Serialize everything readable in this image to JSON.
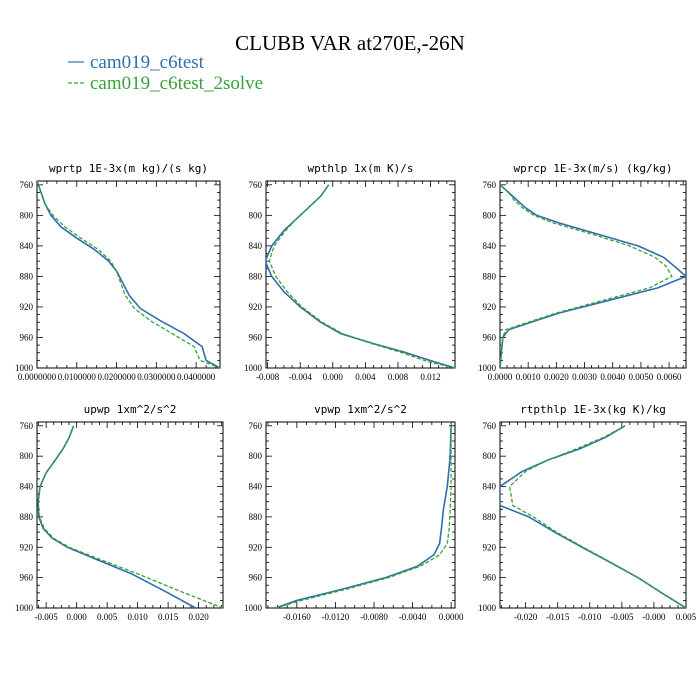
{
  "title": "CLUBB VAR at270E,-26N",
  "colors": {
    "series1": "#2f6fac",
    "series2": "#38a23a"
  },
  "legend": [
    {
      "label": "cam019_c6test",
      "color": "#2f6fac",
      "dash": "solid"
    },
    {
      "label": "cam019_c6test_2solve",
      "color": "#38a23a",
      "dash": "dashed"
    }
  ],
  "chart_data": [
    {
      "type": "line",
      "title": "wprtp   1E-3x(m kg)/(s kg)",
      "xlim": [
        0.0,
        0.046
      ],
      "ylim": [
        1000,
        755
      ],
      "y_inverted": true,
      "yticks": [
        760,
        800,
        840,
        880,
        920,
        960,
        1000
      ],
      "xticks": [
        0.0,
        0.01,
        0.02,
        0.03,
        0.04
      ],
      "xtick_labels": [
        "0.0000000",
        "0.0100000",
        "0.0200000",
        "0.0300000",
        "0.0400000"
      ],
      "series": [
        {
          "name": "cam019_c6test",
          "x": [
            0.0,
            0.001,
            0.002,
            0.0035,
            0.006,
            0.01,
            0.0145,
            0.018,
            0.02,
            0.0215,
            0.0232,
            0.026,
            0.031,
            0.037,
            0.0415,
            0.0425,
            0.046
          ],
          "y": [
            755,
            770,
            785,
            800,
            815,
            830,
            845,
            860,
            873,
            888,
            905,
            922,
            938,
            955,
            972,
            990,
            1000
          ]
        },
        {
          "name": "cam019_c6test_2solve",
          "x": [
            0.0,
            0.001,
            0.002,
            0.004,
            0.007,
            0.011,
            0.0155,
            0.0185,
            0.02,
            0.021,
            0.0222,
            0.0245,
            0.0285,
            0.034,
            0.0395,
            0.041,
            0.046
          ],
          "y": [
            755,
            770,
            785,
            800,
            815,
            830,
            845,
            860,
            873,
            888,
            905,
            922,
            938,
            955,
            972,
            990,
            1000
          ]
        }
      ]
    },
    {
      "type": "line",
      "title": "wpthlp   1x(m K)/s",
      "xlim": [
        -0.0082,
        0.015
      ],
      "ylim": [
        1000,
        755
      ],
      "y_inverted": true,
      "yticks": [
        760,
        800,
        840,
        880,
        920,
        960,
        1000
      ],
      "xticks": [
        -0.008,
        -0.004,
        0.0,
        0.004,
        0.008,
        0.012
      ],
      "xtick_labels": [
        "-0.008",
        "-0.004",
        "0.000",
        "0.004",
        "0.008",
        "0.012"
      ],
      "series": [
        {
          "name": "cam019_c6test",
          "x": [
            -0.0005,
            -0.0015,
            -0.003,
            -0.0045,
            -0.006,
            -0.0075,
            -0.0083,
            -0.0075,
            -0.006,
            -0.004,
            -0.0015,
            0.001,
            0.005,
            0.009,
            0.0125,
            0.015
          ],
          "y": [
            760,
            775,
            790,
            805,
            820,
            840,
            860,
            880,
            900,
            920,
            940,
            955,
            968,
            980,
            992,
            1000
          ]
        },
        {
          "name": "cam019_c6test_2solve",
          "x": [
            -0.0005,
            -0.0015,
            -0.003,
            -0.0045,
            -0.0058,
            -0.0072,
            -0.0078,
            -0.007,
            -0.0056,
            -0.0038,
            -0.0013,
            0.0012,
            0.0048,
            0.0085,
            0.0118,
            0.015
          ],
          "y": [
            760,
            775,
            790,
            805,
            820,
            840,
            860,
            880,
            900,
            920,
            940,
            955,
            968,
            980,
            992,
            1000
          ]
        }
      ]
    },
    {
      "type": "line",
      "title": "wprcp   1E-3x(m/s) (kg/kg)",
      "xlim": [
        0.0,
        0.0066
      ],
      "ylim": [
        1000,
        755
      ],
      "y_inverted": true,
      "yticks": [
        760,
        800,
        840,
        880,
        920,
        960,
        1000
      ],
      "xticks": [
        0.0,
        0.001,
        0.002,
        0.003,
        0.004,
        0.005,
        0.006
      ],
      "xtick_labels": [
        "0.0000",
        "0.0010",
        "0.0020",
        "0.0030",
        "0.0040",
        "0.0050",
        "0.0060"
      ],
      "series": [
        {
          "name": "cam019_c6test",
          "x": [
            0.0,
            0.0003,
            0.0006,
            0.0009,
            0.0013,
            0.0021,
            0.0035,
            0.0049,
            0.0058,
            0.0062,
            0.0066,
            0.0056,
            0.0038,
            0.0021,
            0.0011,
            0.0003,
            0.0001,
            0.0
          ],
          "y": [
            760,
            770,
            780,
            790,
            800,
            810,
            825,
            840,
            855,
            867,
            880,
            895,
            912,
            928,
            940,
            950,
            960,
            1000
          ]
        },
        {
          "name": "cam019_c6test_2solve",
          "x": [
            0.0,
            0.0003,
            0.0005,
            0.0008,
            0.0012,
            0.0019,
            0.0033,
            0.0046,
            0.0055,
            0.0059,
            0.0061,
            0.0053,
            0.0036,
            0.002,
            0.001,
            0.0002,
            0.0001,
            0.0
          ],
          "y": [
            760,
            770,
            780,
            790,
            800,
            810,
            825,
            840,
            855,
            867,
            880,
            895,
            912,
            928,
            940,
            950,
            960,
            1000
          ]
        }
      ]
    },
    {
      "type": "line",
      "title": "upwp   1xm^2/s^2",
      "xlim": [
        -0.0065,
        0.024
      ],
      "ylim": [
        1000,
        755
      ],
      "y_inverted": true,
      "yticks": [
        760,
        800,
        840,
        880,
        920,
        960,
        1000
      ],
      "xticks": [
        -0.005,
        0.0,
        0.005,
        0.01,
        0.015,
        0.02
      ],
      "xtick_labels": [
        "-0.005",
        "0.000",
        "0.005",
        "0.010",
        "0.015",
        "0.020"
      ],
      "series": [
        {
          "name": "cam019_c6test",
          "x": [
            -0.0005,
            -0.0012,
            -0.0022,
            -0.0035,
            -0.005,
            -0.006,
            -0.0063,
            -0.0062,
            -0.0055,
            -0.004,
            -0.0015,
            0.003,
            0.009,
            0.0145,
            0.0195
          ],
          "y": [
            760,
            775,
            790,
            805,
            822,
            840,
            860,
            880,
            895,
            908,
            920,
            935,
            955,
            978,
            1000
          ]
        },
        {
          "name": "cam019_c6test_2solve",
          "x": [
            -0.0005,
            -0.0012,
            -0.0022,
            -0.0035,
            -0.005,
            -0.006,
            -0.0063,
            -0.0061,
            -0.0053,
            -0.0038,
            -0.0012,
            0.0035,
            0.01,
            0.017,
            0.024
          ],
          "y": [
            760,
            775,
            790,
            805,
            822,
            840,
            860,
            880,
            895,
            908,
            920,
            935,
            955,
            978,
            1000
          ]
        }
      ]
    },
    {
      "type": "line",
      "title": "vpwp   1xm^2/s^2",
      "xlim": [
        -0.0192,
        0.0004
      ],
      "ylim": [
        1000,
        755
      ],
      "y_inverted": true,
      "yticks": [
        760,
        800,
        840,
        880,
        920,
        960,
        1000
      ],
      "xticks": [
        -0.016,
        -0.012,
        -0.008,
        -0.004,
        0.0
      ],
      "xtick_labels": [
        "-0.0160",
        "-0.0120",
        "-0.0080",
        "-0.0040",
        "0.0000"
      ],
      "series": [
        {
          "name": "cam019_c6test",
          "x": [
            0.0,
            -0.0001,
            -0.0004,
            -0.0008,
            -0.001,
            -0.0012,
            -0.0018,
            -0.0035,
            -0.0068,
            -0.0112,
            -0.016,
            -0.0182
          ],
          "y": [
            760,
            800,
            840,
            870,
            895,
            915,
            930,
            945,
            960,
            975,
            990,
            1000
          ]
        },
        {
          "name": "cam019_c6test_2solve",
          "x": [
            0.0,
            0.0,
            0.0,
            -0.0001,
            -0.0002,
            -0.0004,
            -0.0012,
            -0.0032,
            -0.0065,
            -0.0108,
            -0.0155,
            -0.0182
          ],
          "y": [
            760,
            800,
            840,
            870,
            895,
            915,
            930,
            945,
            960,
            975,
            990,
            1000
          ]
        }
      ]
    },
    {
      "type": "line",
      "title": "rtpthlp   1E-3x(kg K)/kg",
      "xlim": [
        -0.024,
        0.005
      ],
      "ylim": [
        1000,
        755
      ],
      "y_inverted": true,
      "yticks": [
        760,
        800,
        840,
        880,
        920,
        960,
        1000
      ],
      "xticks": [
        -0.02,
        -0.015,
        -0.01,
        -0.005,
        0.0,
        0.005
      ],
      "xtick_labels": [
        "-0.020",
        "-0.015",
        "-0.010",
        "-0.005",
        "-0.000",
        "0.005"
      ],
      "series": [
        {
          "name": "cam019_c6test",
          "x": [
            -0.0045,
            -0.0075,
            -0.0115,
            -0.0165,
            -0.0205,
            -0.024,
            -0.024,
            -0.0195,
            -0.0155,
            -0.0112,
            -0.0068,
            -0.0025,
            0.0012,
            0.005
          ],
          "y": [
            760,
            775,
            790,
            805,
            820,
            840,
            865,
            880,
            900,
            920,
            940,
            960,
            980,
            1000
          ]
        },
        {
          "name": "cam019_c6test_2solve",
          "x": [
            -0.0045,
            -0.0078,
            -0.012,
            -0.0165,
            -0.02,
            -0.0225,
            -0.022,
            -0.0188,
            -0.0152,
            -0.011,
            -0.0067,
            -0.0025,
            0.0012,
            0.005
          ],
          "y": [
            760,
            775,
            790,
            805,
            820,
            840,
            865,
            880,
            900,
            920,
            940,
            960,
            980,
            1000
          ]
        }
      ]
    }
  ]
}
